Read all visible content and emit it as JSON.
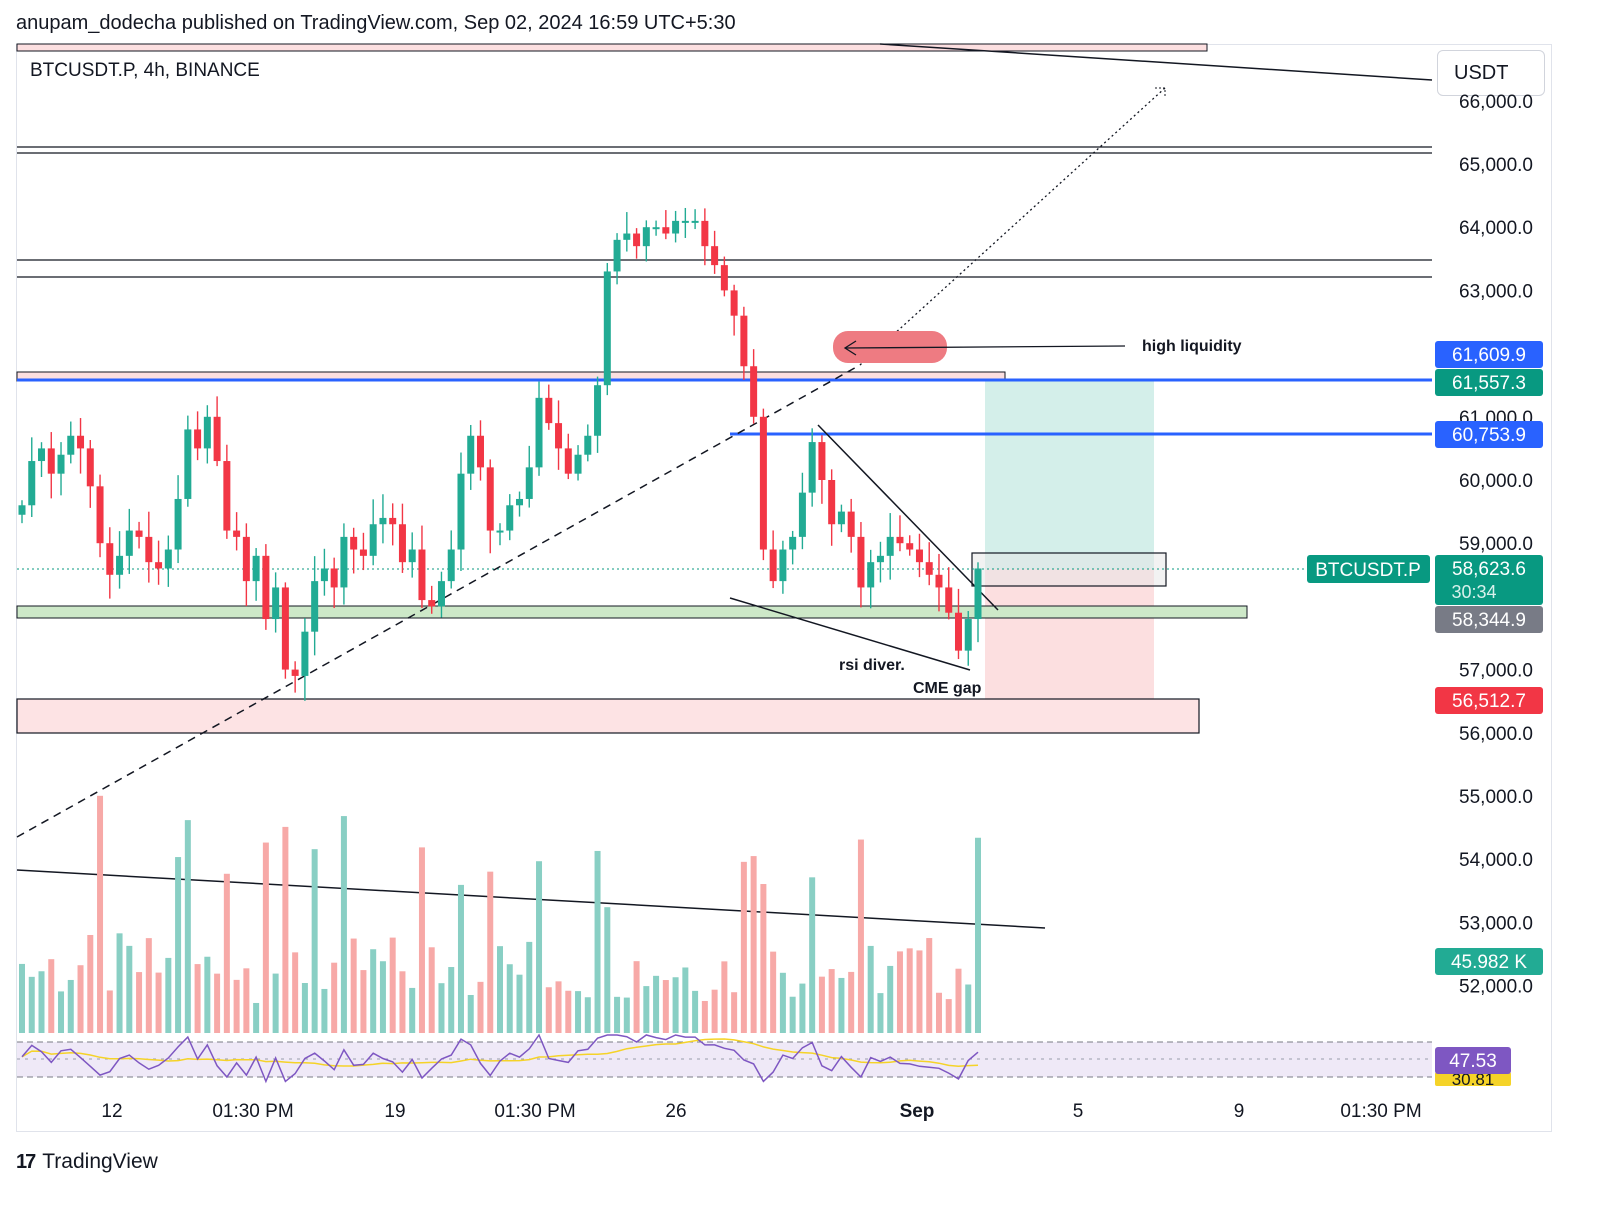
{
  "header": {
    "published": "anupam_dodecha published on TradingView.com, Sep 02, 2024 16:59 UTC+5:30"
  },
  "symbol_line": "BTCUSDT.P, 4h, BINANCE",
  "currency_button": "USDT",
  "footer": {
    "brand": "TradingView",
    "logo_glyph": "17"
  },
  "annotations": {
    "high_liquidity": "high liquidity",
    "rsi_div": "rsi diver.",
    "cme_gap": "CME gap"
  },
  "price_badges": {
    "p1": {
      "text": "61,609.9",
      "color": "#2962ff"
    },
    "p2": {
      "text": "61,557.3",
      "color": "#089981"
    },
    "p3": {
      "text": "60,753.9",
      "color": "#2962ff"
    },
    "last_symbol": "BTCUSDT.P",
    "last_price": "58,623.6",
    "countdown": "30:34",
    "p5": {
      "text": "58,344.9",
      "color": "#787b86"
    },
    "p6": {
      "text": "56,512.7",
      "color": "#f23645"
    },
    "volume": {
      "text": "45.982 K",
      "color": "#22ab94"
    },
    "rsi": {
      "text": "47.53",
      "color": "#7e57c2"
    },
    "rsi_ma_partial": "30.81"
  },
  "chart_data": {
    "type": "candlestick",
    "symbol": "BTCUSDT.P",
    "interval": "4h",
    "exchange": "BINANCE",
    "ylim": [
      51500,
      66200
    ],
    "y_ticks": [
      "66,000.0",
      "65,000.0",
      "64,000.0",
      "63,000.0",
      "61,000.0",
      "60,000.0",
      "59,000.0",
      "57,000.0",
      "56,000.0",
      "55,000.0",
      "54,000.0",
      "53,000.0",
      "52,000.0"
    ],
    "x_ticks": [
      "12",
      "01:30 PM",
      "19",
      "01:30 PM",
      "26",
      "Sep",
      "5",
      "9",
      "01:30 PM"
    ],
    "close_path": [
      59600,
      60300,
      60500,
      60100,
      60400,
      60700,
      60500,
      59900,
      59000,
      58500,
      58800,
      59200,
      59100,
      58700,
      58600,
      58900,
      59700,
      60800,
      60500,
      61000,
      60300,
      59200,
      59100,
      58400,
      58800,
      57800,
      58300,
      57000,
      56900,
      57600,
      58400,
      58600,
      58300,
      59100,
      58900,
      58800,
      59300,
      59400,
      59300,
      58700,
      58900,
      58100,
      58000,
      58400,
      58900,
      60100,
      60700,
      60200,
      59200,
      59200,
      59600,
      59700,
      60200,
      61300,
      60900,
      60500,
      60100,
      60400,
      60700,
      61500,
      63300,
      63800,
      63900,
      63700,
      64000,
      64000,
      63900,
      64100,
      64100,
      64100,
      63700,
      63400,
      63000,
      62600,
      61800,
      61000,
      58900,
      58400,
      58900,
      59100,
      59800,
      60600,
      60000,
      59300,
      59500,
      59100,
      58300,
      58700,
      58800,
      59100,
      59000,
      58900,
      58700,
      58500,
      58300,
      57900,
      57300,
      57800,
      58600
    ],
    "volume_last": "45.982 K",
    "rsi_last": 47.53,
    "levels": [
      {
        "price": 61609.9,
        "color": "#2962ff"
      },
      {
        "price": 61557.3,
        "color": "#089981"
      },
      {
        "price": 60753.9,
        "color": "#2962ff"
      },
      {
        "price": 58623.6,
        "color": "#089981"
      },
      {
        "price": 58344.9,
        "color": "#787b86"
      },
      {
        "price": 56512.7,
        "color": "#f23645"
      }
    ],
    "colors": {
      "up": "#22ab94",
      "down": "#f23645",
      "up_volume": "#89cfc4",
      "down_volume": "#f7a9a7",
      "rsi_line": "#7e57c2",
      "rsi_ma": "#f5d328"
    }
  }
}
